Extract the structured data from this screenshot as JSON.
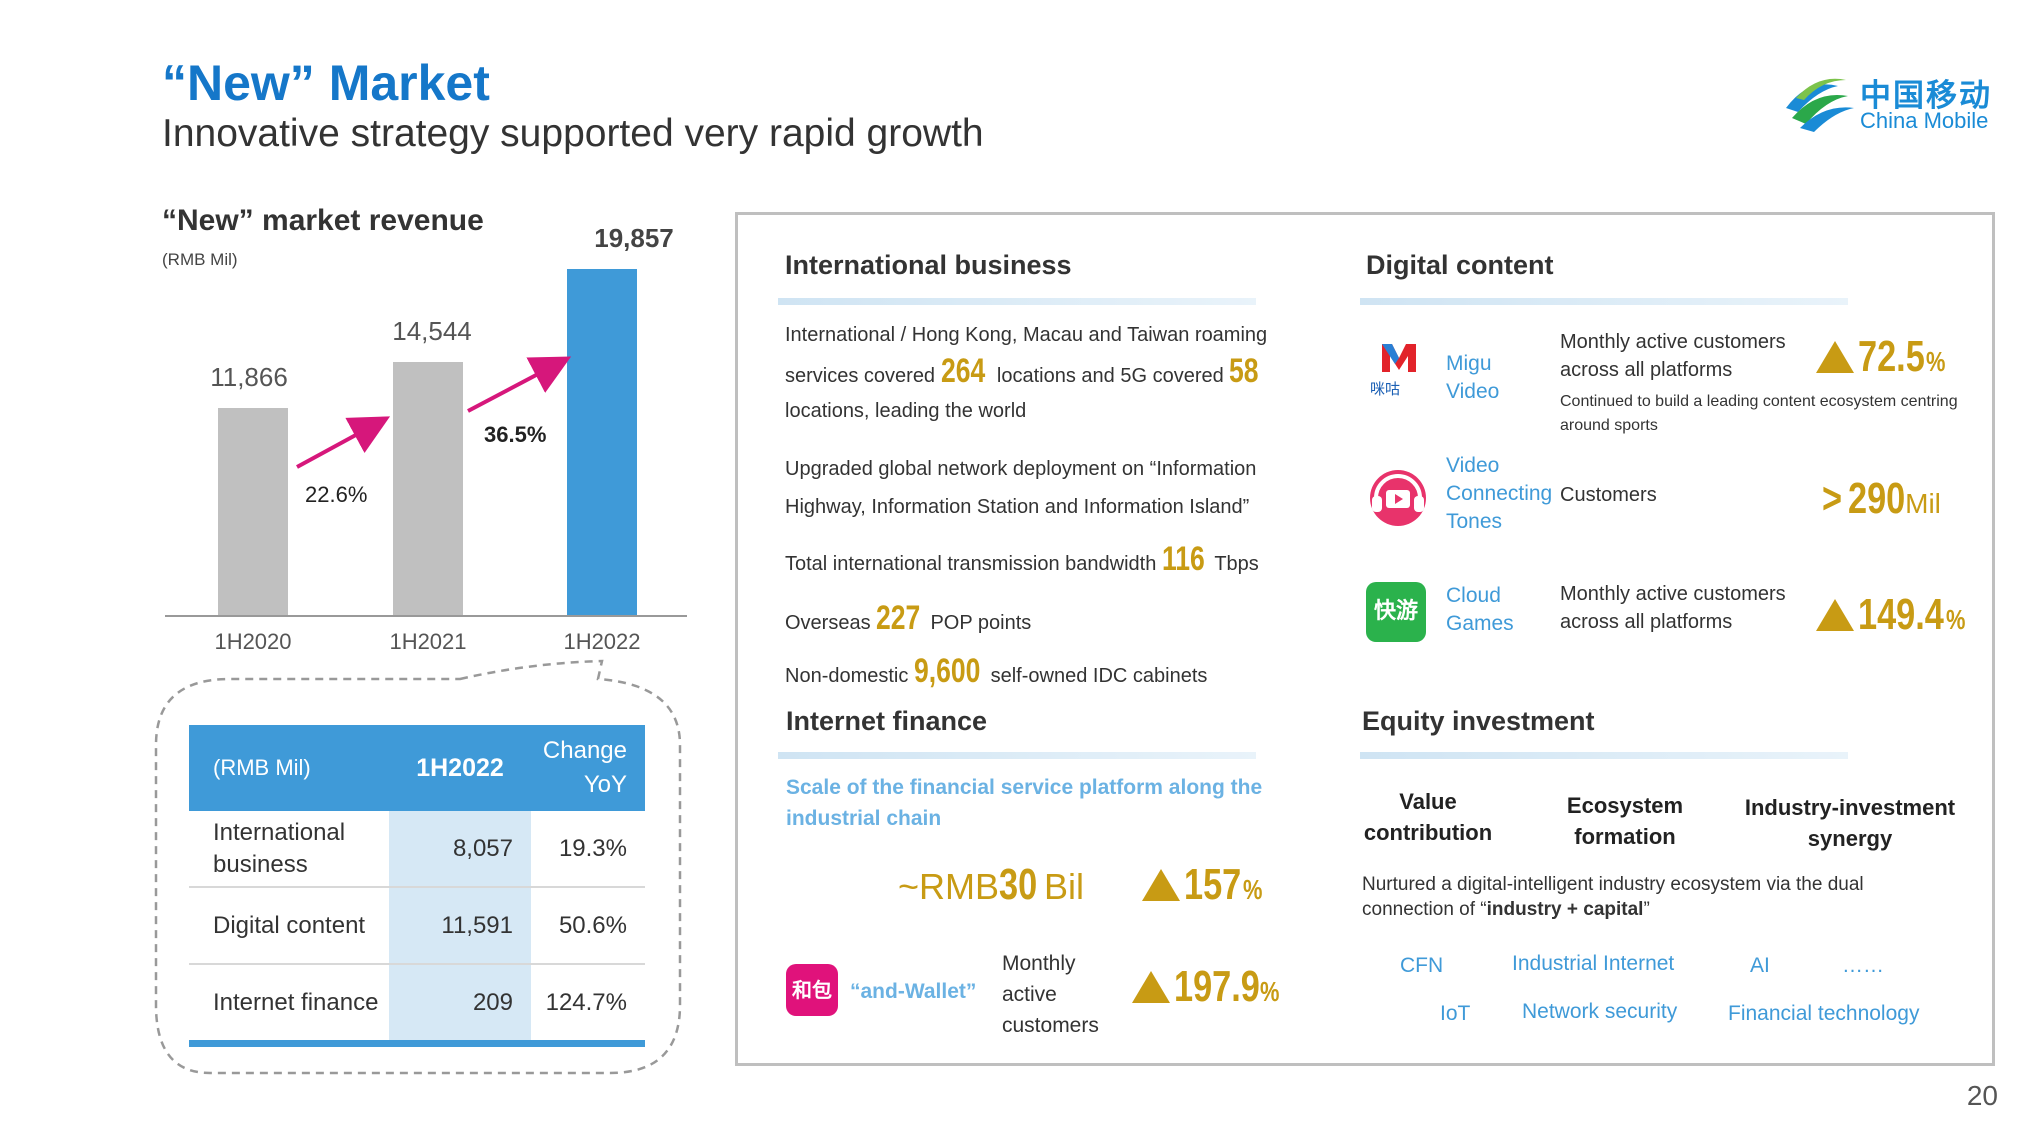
{
  "header": {
    "title": "“New” Market",
    "subtitle": "Innovative strategy supported very rapid growth",
    "logo_cn": "中国移动",
    "logo_en": "China Mobile"
  },
  "chart_section": {
    "title": "“New” market revenue",
    "unit": "(RMB Mil)"
  },
  "chart_data": {
    "type": "bar",
    "categories": [
      "1H2020",
      "1H2021",
      "1H2022"
    ],
    "values": [
      11866,
      14544,
      19857
    ],
    "value_labels": [
      "11,866",
      "14,544",
      "19,857"
    ],
    "growth_labels": [
      "22.6%",
      "36.5%"
    ],
    "colors": [
      "#c0c0c0",
      "#c0c0c0",
      "#3f9ad8"
    ],
    "ylim": [
      0,
      21000
    ],
    "grid": false
  },
  "table": {
    "headers": [
      "(RMB Mil)",
      "1H2022",
      "Change YoY"
    ],
    "rows": [
      {
        "label": "International business",
        "value": "8,057",
        "change": "19.3%"
      },
      {
        "label": "Digital content",
        "value": "11,591",
        "change": "50.6%"
      },
      {
        "label": "Internet finance",
        "value": "209",
        "change": "124.7%"
      }
    ]
  },
  "international": {
    "title": "International business",
    "line1": "International / Hong Kong, Macau and Taiwan roaming",
    "line2a": "services covered",
    "line2b": "264",
    "line2c": "locations and 5G covered",
    "line2d": "58",
    "line3": "locations, leading the world",
    "line4": "Upgraded global network deployment on “Information",
    "line5": "Highway, Information Station and Information Island”",
    "line6a": "Total international transmission bandwidth",
    "line6b": "116",
    "line6c": "Tbps",
    "line7a": "Overseas",
    "line7b": "227",
    "line7c": "POP points",
    "line8a": "Non-domestic",
    "line8b": "9,600",
    "line8c": "self-owned IDC cabinets"
  },
  "finance": {
    "title": "Internet finance",
    "blue_text": "Scale of the financial service platform along the industrial chain",
    "scale_prefix": "~RMB",
    "scale_value": "30",
    "scale_unit": "Bil",
    "scale_growth": "157",
    "pct": "%",
    "wallet_label": "“and-Wallet”",
    "wallet_desc": "Monthly active customers",
    "wallet_growth": "197.9",
    "wallet_icon_text": "和包"
  },
  "digital": {
    "title": "Digital content",
    "items": [
      {
        "name": "Migu Video",
        "desc": "Monthly active customers across all platforms",
        "note": "Continued to build a leading content ecosystem centring around sports",
        "stat": "72.5",
        "unit": "%"
      },
      {
        "name": "Video Connecting Tones",
        "desc": "Customers",
        "stat_prefix": "> ",
        "stat": "290",
        "unit": "Mil"
      },
      {
        "name": "Cloud Games",
        "desc": "Monthly active customers across all platforms",
        "stat": "149.4",
        "unit": "%"
      }
    ],
    "migu_icon_text": "咪咕",
    "games_icon_text": "快游"
  },
  "equity": {
    "title": "Equity investment",
    "pillars": [
      "Value contribution",
      "Ecosystem formation",
      "Industry-investment synergy"
    ],
    "desc_a": "Nurtured a digital-intelligent industry ecosystem via the dual connection of “",
    "desc_b": "industry + capital",
    "desc_c": "”",
    "tags_row1": [
      "CFN",
      "Industrial Internet",
      "AI",
      "……"
    ],
    "tags_row2": [
      "IoT",
      "Network security",
      "Financial technology"
    ]
  },
  "page_number": "20"
}
